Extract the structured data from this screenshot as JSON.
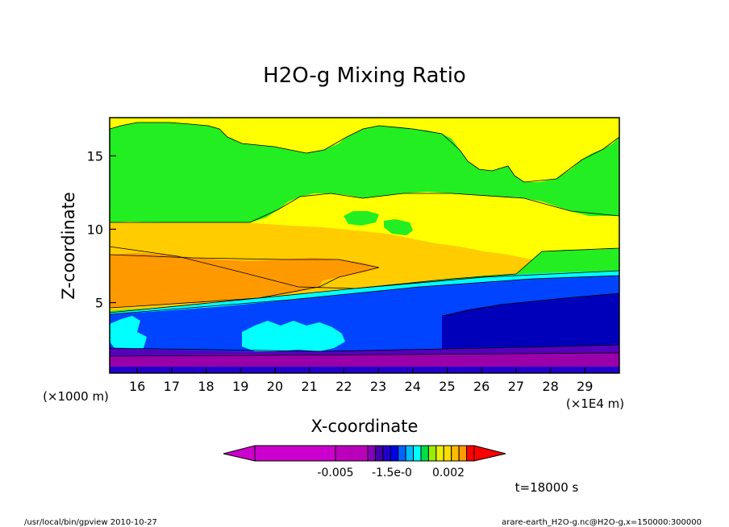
{
  "chart_data": {
    "type": "heatmap",
    "title": "H2O-g Mixing Ratio",
    "xlabel": "X-coordinate",
    "ylabel": "Z-coordinate",
    "x_unit": "(×1E4 m)",
    "y_unit": "(×1000 m)",
    "xlim": [
      15.2,
      30.0
    ],
    "ylim": [
      0.2,
      17.6
    ],
    "x_ticks": [
      "16",
      "17",
      "18",
      "19",
      "20",
      "21",
      "22",
      "23",
      "24",
      "25",
      "26",
      "27",
      "28",
      "29"
    ],
    "y_ticks": [
      "5",
      "10",
      "15"
    ],
    "colorbar_labels": [
      "-0.005",
      "-1.5e-0",
      "0.002"
    ],
    "colorbar_colors": [
      "#cc00cc",
      "#bb00bb",
      "#8800bb",
      "#4400aa",
      "#2200cc",
      "#0000ee",
      "#0066ff",
      "#00bbff",
      "#00ffff",
      "#00dd44",
      "#99ee00",
      "#eeee00",
      "#ffdd00",
      "#ffbb00",
      "#ff9900",
      "#ff0000"
    ],
    "contour_layers": [
      {
        "level": 1,
        "color": "#22ee22"
      },
      {
        "level": 2,
        "color": "#ffff00"
      },
      {
        "level": 3,
        "color": "#ffcc00"
      },
      {
        "level": 4,
        "color": "#ff9900"
      },
      {
        "level": 5,
        "color": "#00ffff"
      },
      {
        "level": 6,
        "color": "#0044ff"
      },
      {
        "level": 7,
        "color": "#0000bb"
      },
      {
        "level": 8,
        "color": "#5500bb"
      },
      {
        "level": 9,
        "color": "#9900aa"
      }
    ],
    "annotation": "t=18000 s"
  },
  "footer": {
    "left": "/usr/local/bin/gpview  2010-10-27",
    "right": "arare-earth_H2O-g.nc@H2O-g,x=150000:300000"
  }
}
